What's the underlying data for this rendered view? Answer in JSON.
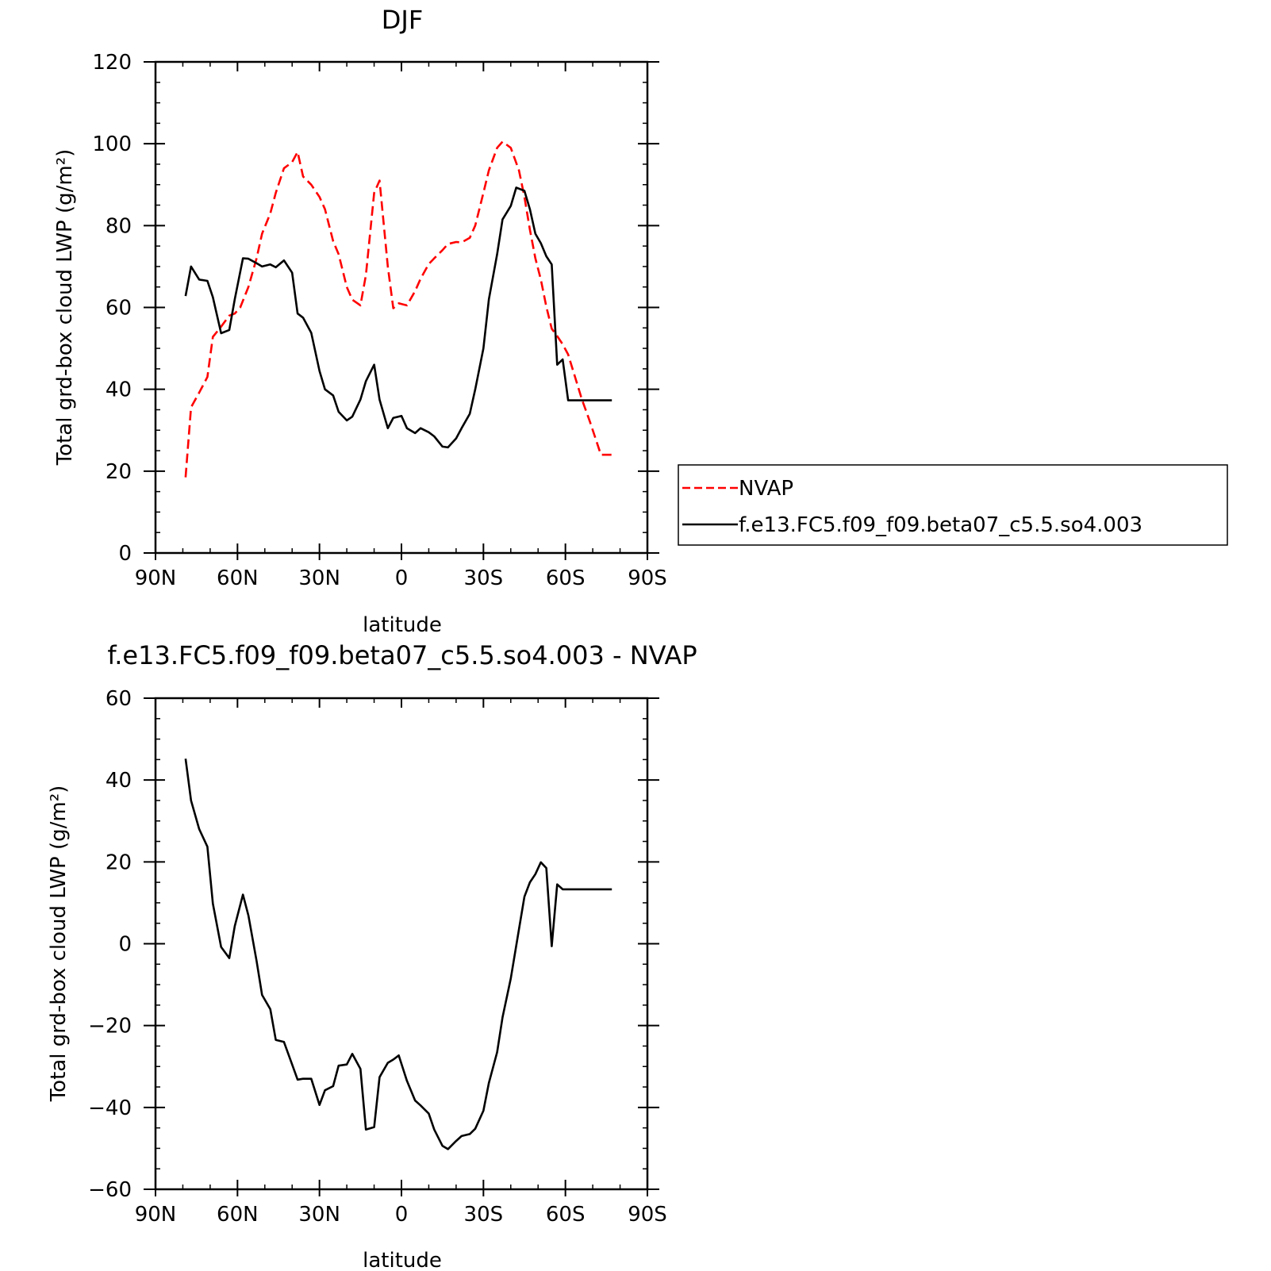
{
  "chart_data": [
    {
      "type": "line",
      "title": "DJF",
      "xlabel": "latitude",
      "ylabel": "Total grd-box cloud LWP",
      "ylabel_unit": "(g/m²)",
      "xlim": [
        90,
        -90
      ],
      "ylim": [
        0,
        120
      ],
      "xticks": [
        90,
        60,
        30,
        0,
        -30,
        -60,
        -90
      ],
      "xtick_labels": [
        "90N",
        "60N",
        "30N",
        "0",
        "30S",
        "60S",
        "90S"
      ],
      "yticks": [
        0,
        20,
        40,
        60,
        80,
        100,
        120
      ],
      "ytick_labels": [
        "0",
        "20",
        "40",
        "60",
        "80",
        "100",
        "120"
      ],
      "grid": false,
      "legend": "right",
      "series": [
        {
          "name": "NVAP",
          "color": "#ff0000",
          "dash": "dashed",
          "x": [
            79,
            77,
            74,
            71,
            69,
            66,
            63,
            61,
            59,
            56,
            53,
            51,
            48,
            46,
            43,
            40,
            38,
            36,
            33,
            30,
            28,
            25,
            23,
            20,
            18,
            15,
            13,
            10,
            8,
            5,
            3,
            1,
            -2,
            -5,
            -7,
            -10,
            -12,
            -15,
            -17,
            -20,
            -22,
            -25,
            -27,
            -30,
            -32,
            -35,
            -37,
            -40,
            -43,
            -45,
            -47,
            -49,
            -51,
            -53,
            -55,
            -57,
            -59,
            -61,
            -64,
            -66,
            -69,
            -71,
            -73,
            -75,
            -77
          ],
          "y": [
            18.5,
            35.6,
            39.2,
            43,
            52.8,
            55.3,
            58,
            58.5,
            60,
            65,
            72,
            78,
            83,
            88,
            94,
            95.5,
            98,
            92,
            90,
            87,
            84,
            76.2,
            73,
            65,
            61.9,
            60.5,
            67.9,
            88,
            91,
            70,
            59.8,
            61,
            60.5,
            64,
            67,
            70.6,
            72,
            74,
            75.5,
            76,
            75.9,
            77,
            80,
            88,
            93.5,
            99,
            100.5,
            99,
            93.5,
            87,
            79,
            72,
            66.8,
            60.2,
            54.8,
            53,
            51,
            48.5,
            42,
            37.6,
            32,
            28,
            24,
            24,
            24
          ]
        },
        {
          "name": "f.e13.FC5.f09_f09.beta07_c5.5.so4.003",
          "color": "#000000",
          "dash": "solid",
          "x": [
            79,
            77,
            74,
            71,
            69,
            66,
            63,
            61,
            58,
            56,
            53,
            51,
            48,
            46,
            43,
            40,
            38,
            36,
            33,
            30,
            28,
            25,
            23,
            20,
            18,
            15,
            13,
            10,
            8,
            5,
            3,
            0,
            -2,
            -5,
            -7,
            -10,
            -12,
            -15,
            -17,
            -20,
            -22,
            -25,
            -27,
            -30,
            -32,
            -35,
            -37,
            -40,
            -42,
            -45,
            -47,
            -49,
            -51,
            -53,
            -55,
            -57,
            -59,
            -61,
            -64,
            -66,
            -69,
            -71,
            -73,
            -75,
            -77
          ],
          "y": [
            62.8,
            70,
            66.8,
            66.5,
            62.5,
            53.7,
            54.5,
            62,
            72,
            71.9,
            70.8,
            70,
            70.5,
            69.8,
            71.5,
            68.5,
            58.5,
            57.5,
            53.8,
            44.5,
            40,
            38.5,
            34.5,
            32.4,
            33.3,
            37.5,
            42,
            46,
            37.5,
            30.5,
            33,
            33.5,
            30.5,
            29.3,
            30.5,
            29.5,
            28.5,
            26,
            25.8,
            28,
            30.5,
            34,
            40,
            50,
            62,
            73,
            81.5,
            84.8,
            89.3,
            88.5,
            84,
            78,
            75.7,
            72.5,
            70.5,
            46,
            47.3,
            37.3,
            37.3,
            37.3,
            37.3,
            37.3,
            37.3,
            37.3,
            37.3
          ]
        }
      ]
    },
    {
      "type": "line",
      "title": "f.e13.FC5.f09_f09.beta07_c5.5.so4.003 - NVAP",
      "xlabel": "latitude",
      "ylabel": "Total grd-box cloud LWP",
      "ylabel_unit": "(g/m²)",
      "xlim": [
        90,
        -90
      ],
      "ylim": [
        -60,
        60
      ],
      "xticks": [
        90,
        60,
        30,
        0,
        -30,
        -60,
        -90
      ],
      "xtick_labels": [
        "90N",
        "60N",
        "30N",
        "0",
        "30S",
        "60S",
        "90S"
      ],
      "yticks": [
        -60,
        -40,
        -20,
        0,
        20,
        40,
        60
      ],
      "ytick_labels": [
        "−60",
        "−40",
        "−20",
        "0",
        "20",
        "40",
        "60"
      ],
      "grid": false,
      "series": [
        {
          "color": "#000000",
          "dash": "solid",
          "x": [
            79,
            77,
            74,
            71,
            69,
            66,
            63,
            61,
            58,
            56,
            53,
            51,
            48,
            46,
            43,
            40,
            38,
            36,
            33,
            30,
            28,
            25,
            23,
            20,
            18,
            15,
            13,
            10,
            8,
            5,
            3,
            1,
            -2,
            -5,
            -7,
            -10,
            -12,
            -15,
            -17,
            -20,
            -22,
            -25,
            -27,
            -30,
            -32,
            -35,
            -37,
            -40,
            -43,
            -45,
            -47,
            -49,
            -51,
            -53,
            -55,
            -57,
            -59,
            -61,
            -64,
            -66,
            -69,
            -71,
            -73,
            -75,
            -77
          ],
          "y": [
            45.2,
            35,
            28,
            23.7,
            9.8,
            -0.8,
            -3.5,
            4.3,
            12,
            6.9,
            -4.2,
            -12.5,
            -16,
            -23.5,
            -24,
            -29.5,
            -33.2,
            -33,
            -33,
            -39.4,
            -35.8,
            -34.8,
            -29.8,
            -29.5,
            -26.9,
            -30.6,
            -45.4,
            -44.8,
            -32.6,
            -29.1,
            -28.3,
            -27.3,
            -33.5,
            -38.3,
            -39.5,
            -41.5,
            -45.4,
            -49.4,
            -50.2,
            -48.2,
            -47,
            -46.5,
            -45.2,
            -40.8,
            -34,
            -26.5,
            -18,
            -8.5,
            3.5,
            11.5,
            15,
            17,
            19.9,
            18.5,
            -0.6,
            14.5,
            13.3,
            13.3,
            13.3,
            13.3,
            13.3,
            13.3,
            13.3,
            13.3,
            13.3
          ]
        }
      ]
    }
  ]
}
